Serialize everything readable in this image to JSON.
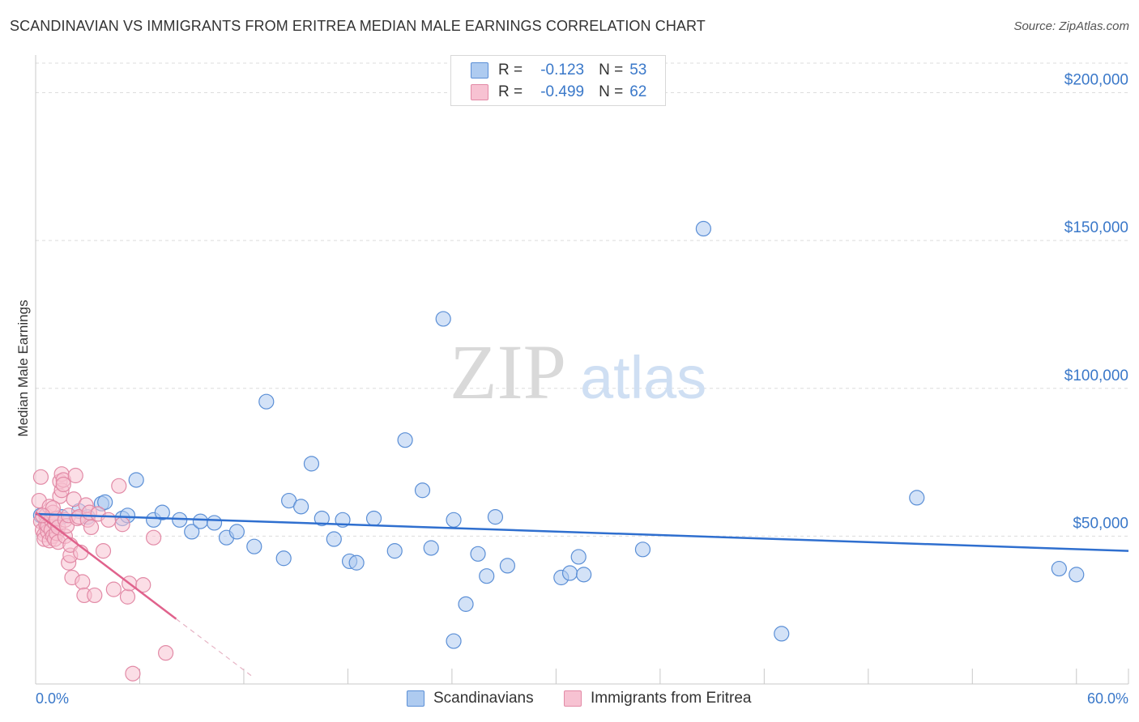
{
  "title": "SCANDINAVIAN VS IMMIGRANTS FROM ERITREA MEDIAN MALE EARNINGS CORRELATION CHART",
  "source": "Source: ZipAtlas.com",
  "watermark": {
    "zip": "ZIP",
    "atlas": "atlas"
  },
  "legend": {
    "rows": [
      {
        "r_label": "R =",
        "r_value": "-0.123",
        "n_label": "N =",
        "n_value": "53",
        "color": "#aecbf0",
        "border": "#5b8fd6"
      },
      {
        "r_label": "R =",
        "r_value": "-0.499",
        "n_label": "N =",
        "n_value": "62",
        "color": "#f7c2d2",
        "border": "#e28aa6"
      }
    ]
  },
  "bottom_legend": [
    {
      "label": "Scandinavians",
      "color": "#aecbf0",
      "border": "#5b8fd6"
    },
    {
      "label": "Immigrants from Eritrea",
      "color": "#f7c2d2",
      "border": "#e28aa6"
    }
  ],
  "chart_data": {
    "type": "scatter",
    "title": "SCANDINAVIAN VS IMMIGRANTS FROM ERITREA MEDIAN MALE EARNINGS CORRELATION CHART",
    "xlabel": "",
    "ylabel": "Median Male Earnings",
    "xlim": [
      0,
      63
    ],
    "ylim": [
      0,
      210000
    ],
    "x_ticks": [
      {
        "value": 0,
        "label": "0.0%"
      },
      {
        "value": 60,
        "label": "60.0%"
      }
    ],
    "y_ticks": [
      {
        "value": 50000,
        "label": "$50,000"
      },
      {
        "value": 100000,
        "label": "$100,000"
      },
      {
        "value": 150000,
        "label": "$150,000"
      },
      {
        "value": 200000,
        "label": "$200,000"
      }
    ],
    "grid": true,
    "series": [
      {
        "name": "Scandinavians",
        "color": "#5b8fd6",
        "fill": "#aecbf0",
        "trend": {
          "x0": 0,
          "y0": 57500,
          "x1": 63,
          "y1": 45000,
          "color": "#2f6fcf"
        },
        "points": [
          [
            0.3,
            57000
          ],
          [
            0.7,
            55500
          ],
          [
            1.5,
            56500
          ],
          [
            2.5,
            58500
          ],
          [
            3.0,
            56500
          ],
          [
            3.8,
            61000
          ],
          [
            4.0,
            61500
          ],
          [
            5.0,
            56000
          ],
          [
            5.3,
            57000
          ],
          [
            5.8,
            69000
          ],
          [
            6.8,
            55500
          ],
          [
            7.3,
            58000
          ],
          [
            8.3,
            55500
          ],
          [
            9.0,
            51500
          ],
          [
            9.5,
            55000
          ],
          [
            10.3,
            54500
          ],
          [
            11.0,
            49500
          ],
          [
            11.6,
            51500
          ],
          [
            12.6,
            46500
          ],
          [
            13.3,
            95500
          ],
          [
            14.3,
            42500
          ],
          [
            14.6,
            62000
          ],
          [
            15.3,
            60000
          ],
          [
            15.9,
            74500
          ],
          [
            16.5,
            56000
          ],
          [
            17.2,
            49000
          ],
          [
            17.7,
            55500
          ],
          [
            18.1,
            41500
          ],
          [
            18.5,
            41000
          ],
          [
            19.5,
            56000
          ],
          [
            20.7,
            45000
          ],
          [
            21.3,
            82500
          ],
          [
            22.3,
            65500
          ],
          [
            22.8,
            46000
          ],
          [
            23.5,
            123500
          ],
          [
            24.1,
            55500
          ],
          [
            24.1,
            14500
          ],
          [
            24.8,
            27000
          ],
          [
            25.5,
            44000
          ],
          [
            26.0,
            36500
          ],
          [
            26.5,
            56500
          ],
          [
            27.2,
            40000
          ],
          [
            30.3,
            36000
          ],
          [
            30.8,
            37500
          ],
          [
            31.3,
            43000
          ],
          [
            31.6,
            37000
          ],
          [
            35.0,
            45500
          ],
          [
            38.5,
            154000
          ],
          [
            43.0,
            17000
          ],
          [
            50.8,
            63000
          ],
          [
            59.0,
            39000
          ],
          [
            60.0,
            37000
          ],
          [
            0.8,
            53000
          ]
        ]
      },
      {
        "name": "Immigrants from Eritrea",
        "color": "#e28aa6",
        "fill": "#f7c2d2",
        "trend": {
          "x0": 0,
          "y0": 58000,
          "x1": 8.1,
          "y1": 22000,
          "color": "#e0628c",
          "dash_to_x": 12.5,
          "dash_to_y": 2500
        },
        "points": [
          [
            0.2,
            62000
          ],
          [
            0.3,
            70000
          ],
          [
            0.3,
            55000
          ],
          [
            0.4,
            52000
          ],
          [
            0.5,
            50500
          ],
          [
            0.5,
            49000
          ],
          [
            0.6,
            57000
          ],
          [
            0.6,
            54000
          ],
          [
            0.7,
            51500
          ],
          [
            0.7,
            53500
          ],
          [
            0.8,
            60000
          ],
          [
            0.8,
            48500
          ],
          [
            0.9,
            55500
          ],
          [
            0.9,
            52000
          ],
          [
            1.0,
            58000
          ],
          [
            1.0,
            50000
          ],
          [
            1.1,
            54500
          ],
          [
            1.1,
            49000
          ],
          [
            1.2,
            56000
          ],
          [
            1.2,
            51000
          ],
          [
            1.3,
            53000
          ],
          [
            1.3,
            48000
          ],
          [
            1.4,
            63500
          ],
          [
            1.4,
            68500
          ],
          [
            1.5,
            65500
          ],
          [
            1.5,
            71000
          ],
          [
            1.6,
            69000
          ],
          [
            1.6,
            67500
          ],
          [
            1.7,
            55500
          ],
          [
            1.7,
            50000
          ],
          [
            1.8,
            53500
          ],
          [
            1.9,
            57000
          ],
          [
            1.9,
            41000
          ],
          [
            2.0,
            43500
          ],
          [
            2.0,
            47000
          ],
          [
            2.1,
            36000
          ],
          [
            2.2,
            62500
          ],
          [
            2.3,
            70500
          ],
          [
            2.4,
            56000
          ],
          [
            2.5,
            56500
          ],
          [
            2.6,
            44500
          ],
          [
            2.7,
            34500
          ],
          [
            2.8,
            30000
          ],
          [
            2.9,
            60500
          ],
          [
            3.0,
            55500
          ],
          [
            3.1,
            58000
          ],
          [
            3.2,
            53000
          ],
          [
            3.4,
            30000
          ],
          [
            3.6,
            57500
          ],
          [
            3.9,
            45000
          ],
          [
            4.2,
            55500
          ],
          [
            4.5,
            32000
          ],
          [
            4.8,
            67000
          ],
          [
            5.0,
            54000
          ],
          [
            5.3,
            29500
          ],
          [
            5.4,
            34000
          ],
          [
            5.6,
            3500
          ],
          [
            6.2,
            33500
          ],
          [
            6.8,
            49500
          ],
          [
            7.5,
            10500
          ],
          [
            1.0,
            59500
          ],
          [
            0.4,
            57000
          ]
        ]
      }
    ]
  }
}
